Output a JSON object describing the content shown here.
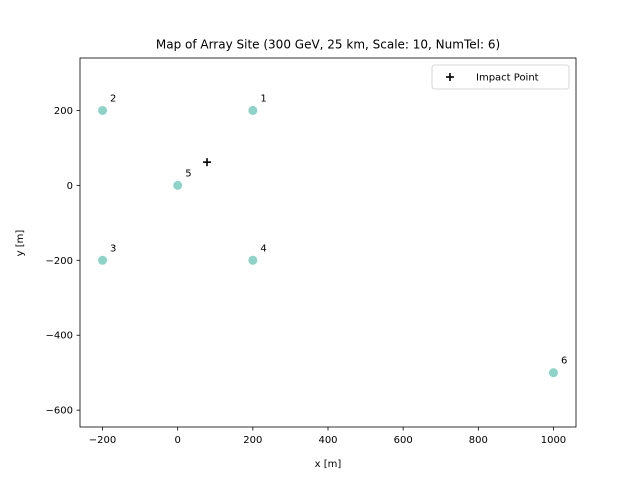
{
  "chart_data": {
    "type": "scatter",
    "title": "Map of Array Site (300 GeV, 25 km, Scale: 10, NumTel: 6)",
    "xlabel": "x [m]",
    "ylabel": "y [m]",
    "xlim": [
      -260,
      1060
    ],
    "ylim": [
      -645,
      340
    ],
    "grid": false,
    "legend_position": "top-right",
    "xticks": [
      -200,
      0,
      200,
      400,
      600,
      800,
      1000
    ],
    "xtick_labels": [
      "−200",
      "0",
      "200",
      "400",
      "600",
      "800",
      "1000"
    ],
    "yticks": [
      -600,
      -400,
      -200,
      0,
      200
    ],
    "ytick_labels": [
      "−600",
      "−400",
      "−200",
      "0",
      "200"
    ],
    "telescopes": [
      {
        "label": "1",
        "x": 200,
        "y": 200
      },
      {
        "label": "2",
        "x": -200,
        "y": 200
      },
      {
        "label": "3",
        "x": -200,
        "y": -200
      },
      {
        "label": "4",
        "x": 200,
        "y": -200
      },
      {
        "label": "5",
        "x": 0,
        "y": 0
      },
      {
        "label": "6",
        "x": 1000,
        "y": -500
      }
    ],
    "telescope_color": "#8dd3c7",
    "impact_point": {
      "name": "Impact Point",
      "x": 78,
      "y": 62,
      "marker": "plus",
      "color": "#000000"
    }
  }
}
